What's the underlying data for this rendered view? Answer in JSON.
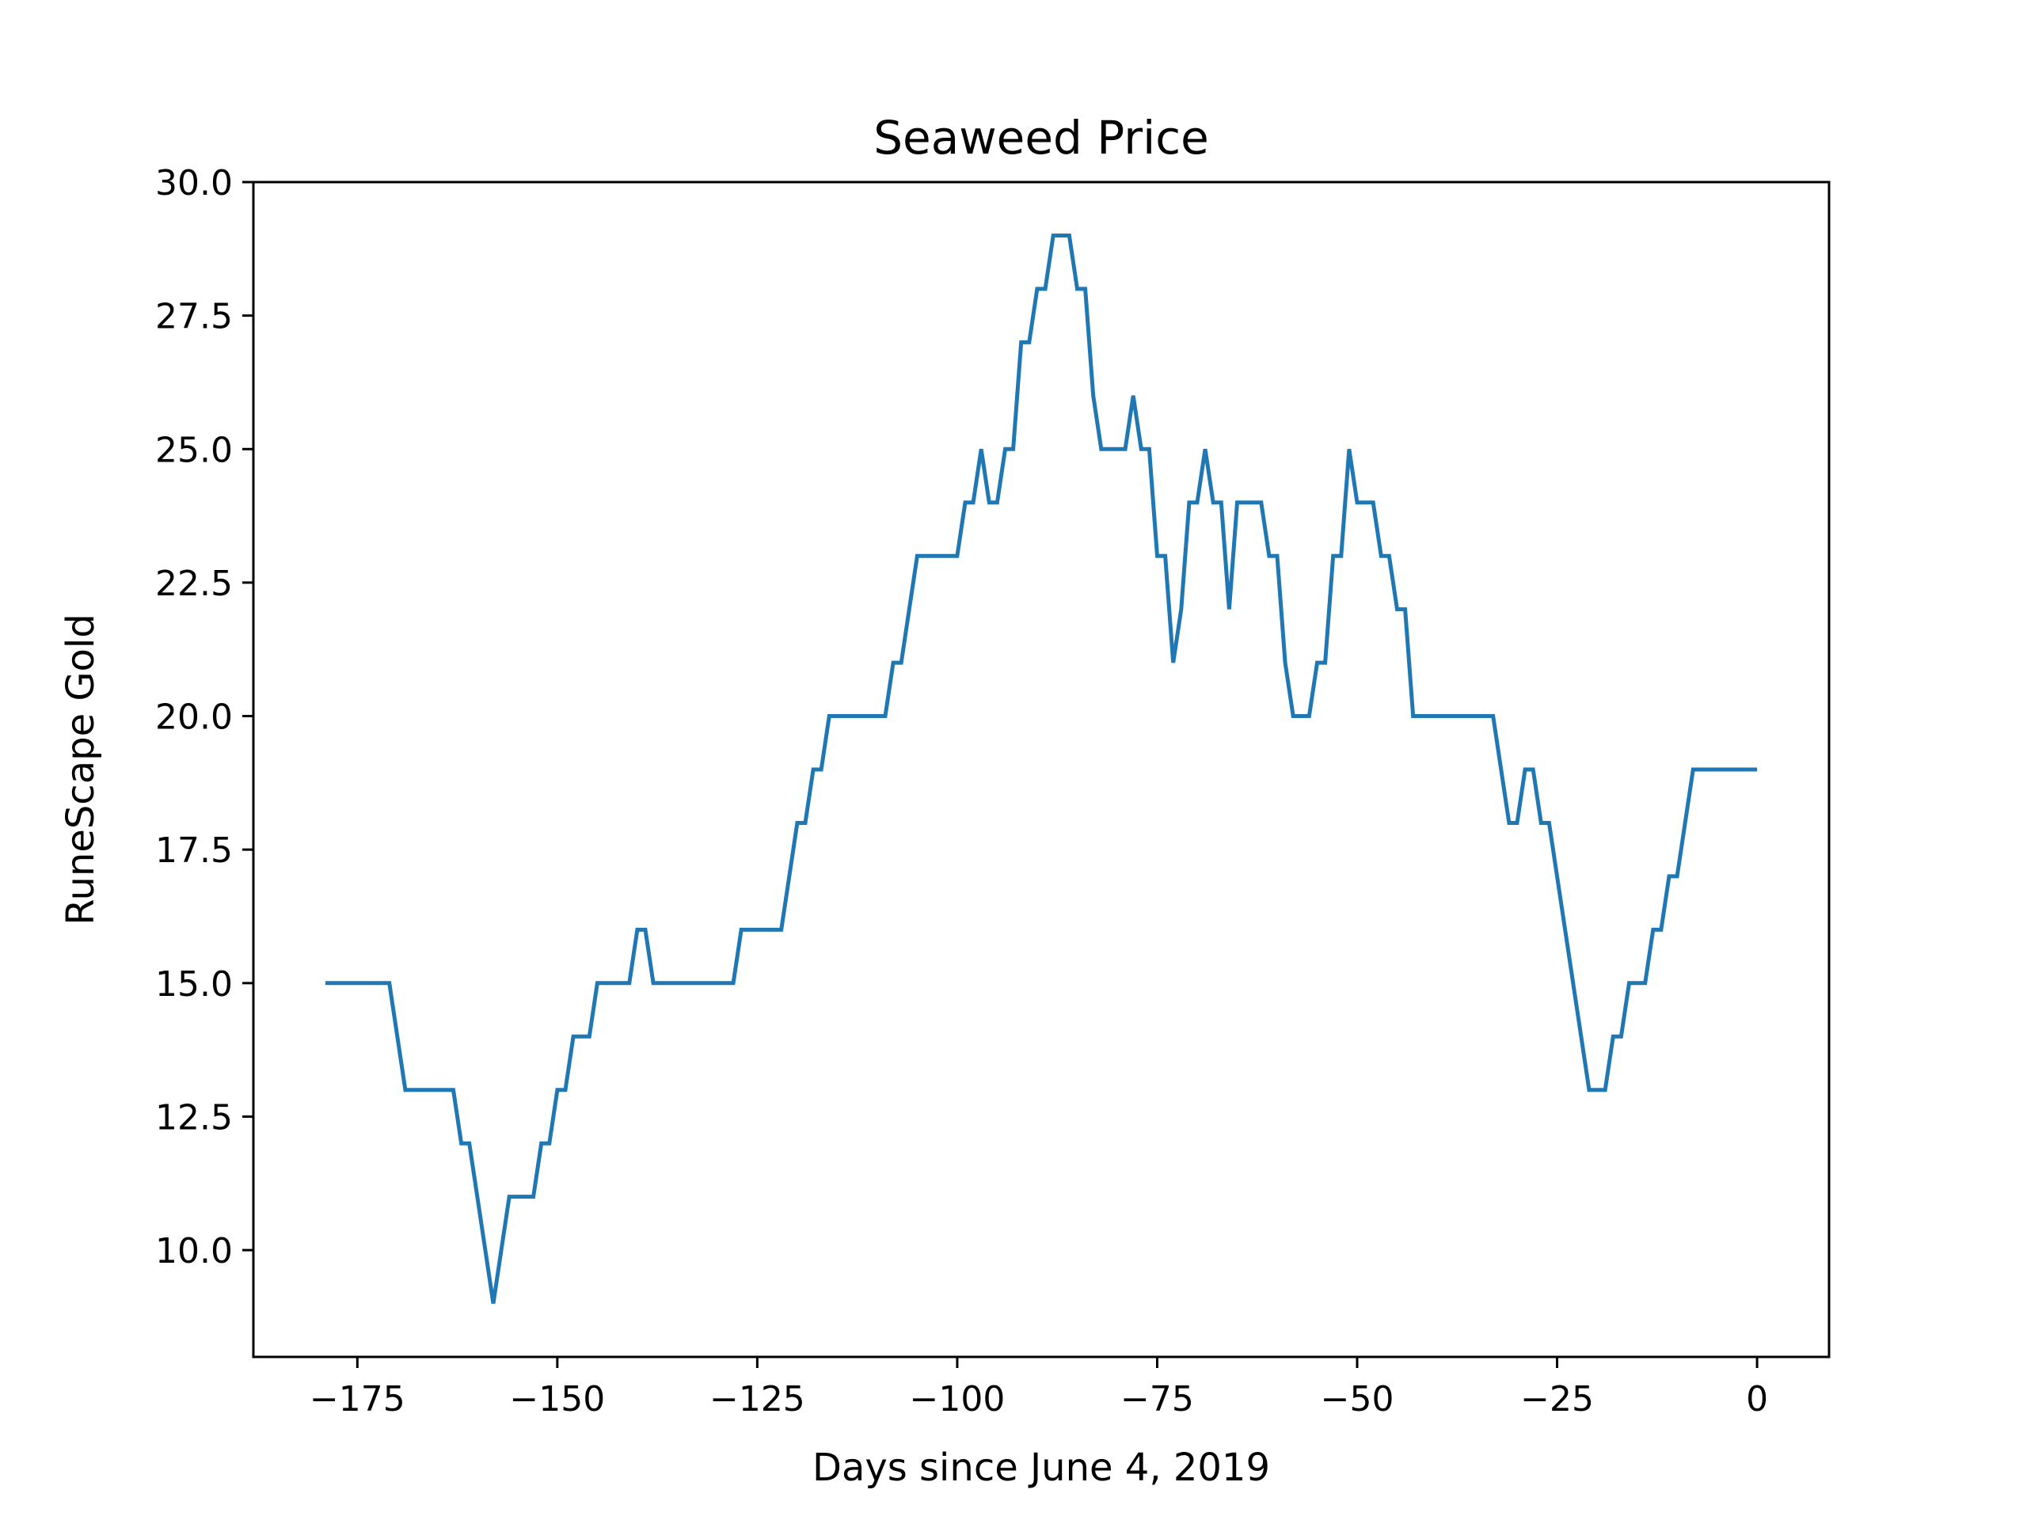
{
  "chart_data": {
    "type": "line",
    "title": "Seaweed Price",
    "xlabel": "Days since June 4, 2019",
    "ylabel": "RuneScape Gold",
    "xlim": [
      -188,
      9
    ],
    "ylim": [
      8,
      30
    ],
    "xticks": [
      -175,
      -150,
      -125,
      -100,
      -75,
      -50,
      -25,
      0
    ],
    "xtick_labels": [
      "−175",
      "−150",
      "−125",
      "−100",
      "−75",
      "−50",
      "−25",
      "0"
    ],
    "yticks": [
      10,
      12.5,
      15,
      17.5,
      20,
      22.5,
      25,
      27.5,
      30
    ],
    "ytick_labels": [
      "10.0",
      "12.5",
      "15.0",
      "17.5",
      "20.0",
      "22.5",
      "25.0",
      "27.5",
      "30.0"
    ],
    "grid": false,
    "series": [
      {
        "color": "#1f77b4",
        "x": [
          -179,
          -171,
          -169,
          -163,
          -162,
          -161,
          -158,
          -156,
          -153,
          -152,
          -151,
          -150,
          -149,
          -148,
          -146,
          -145,
          -141,
          -140,
          -139,
          -138,
          -128,
          -127,
          -122,
          -120,
          -119,
          -118,
          -117,
          -116,
          -109,
          -108,
          -107,
          -105,
          -100,
          -99,
          -98,
          -97,
          -96,
          -95,
          -94,
          -93,
          -92,
          -91,
          -90,
          -89,
          -88,
          -86,
          -85,
          -84,
          -83,
          -82,
          -79,
          -78,
          -77,
          -76,
          -75,
          -74,
          -73,
          -72,
          -71,
          -70,
          -69,
          -68,
          -67,
          -66,
          -65,
          -62,
          -61,
          -60,
          -59,
          -58,
          -56,
          -55,
          -54,
          -53,
          -52,
          -51,
          -50,
          -48,
          -47,
          -46,
          -45,
          -44,
          -43,
          -33,
          -31,
          -30,
          -29,
          -28,
          -27,
          -26,
          -21,
          -19,
          -18,
          -17,
          -16,
          -14,
          -13,
          -12,
          -11,
          -10,
          -8,
          0
        ],
        "values": [
          15,
          15,
          13,
          13,
          12,
          12,
          9,
          11,
          11,
          12,
          12,
          13,
          13,
          14,
          14,
          15,
          15,
          16,
          16,
          15,
          15,
          16,
          16,
          18,
          18,
          19,
          19,
          20,
          20,
          21,
          21,
          23,
          23,
          24,
          24,
          25,
          24,
          24,
          25,
          25,
          27,
          27,
          28,
          28,
          29,
          29,
          28,
          28,
          26,
          25,
          25,
          26,
          25,
          25,
          23,
          23,
          21,
          22,
          24,
          24,
          25,
          24,
          24,
          22,
          24,
          24,
          23,
          23,
          21,
          20,
          20,
          21,
          21,
          23,
          23,
          25,
          24,
          24,
          23,
          23,
          22,
          22,
          20,
          20,
          18,
          18,
          19,
          19,
          18,
          18,
          13,
          13,
          14,
          14,
          15,
          15,
          16,
          16,
          17,
          17,
          19,
          19
        ]
      }
    ]
  }
}
